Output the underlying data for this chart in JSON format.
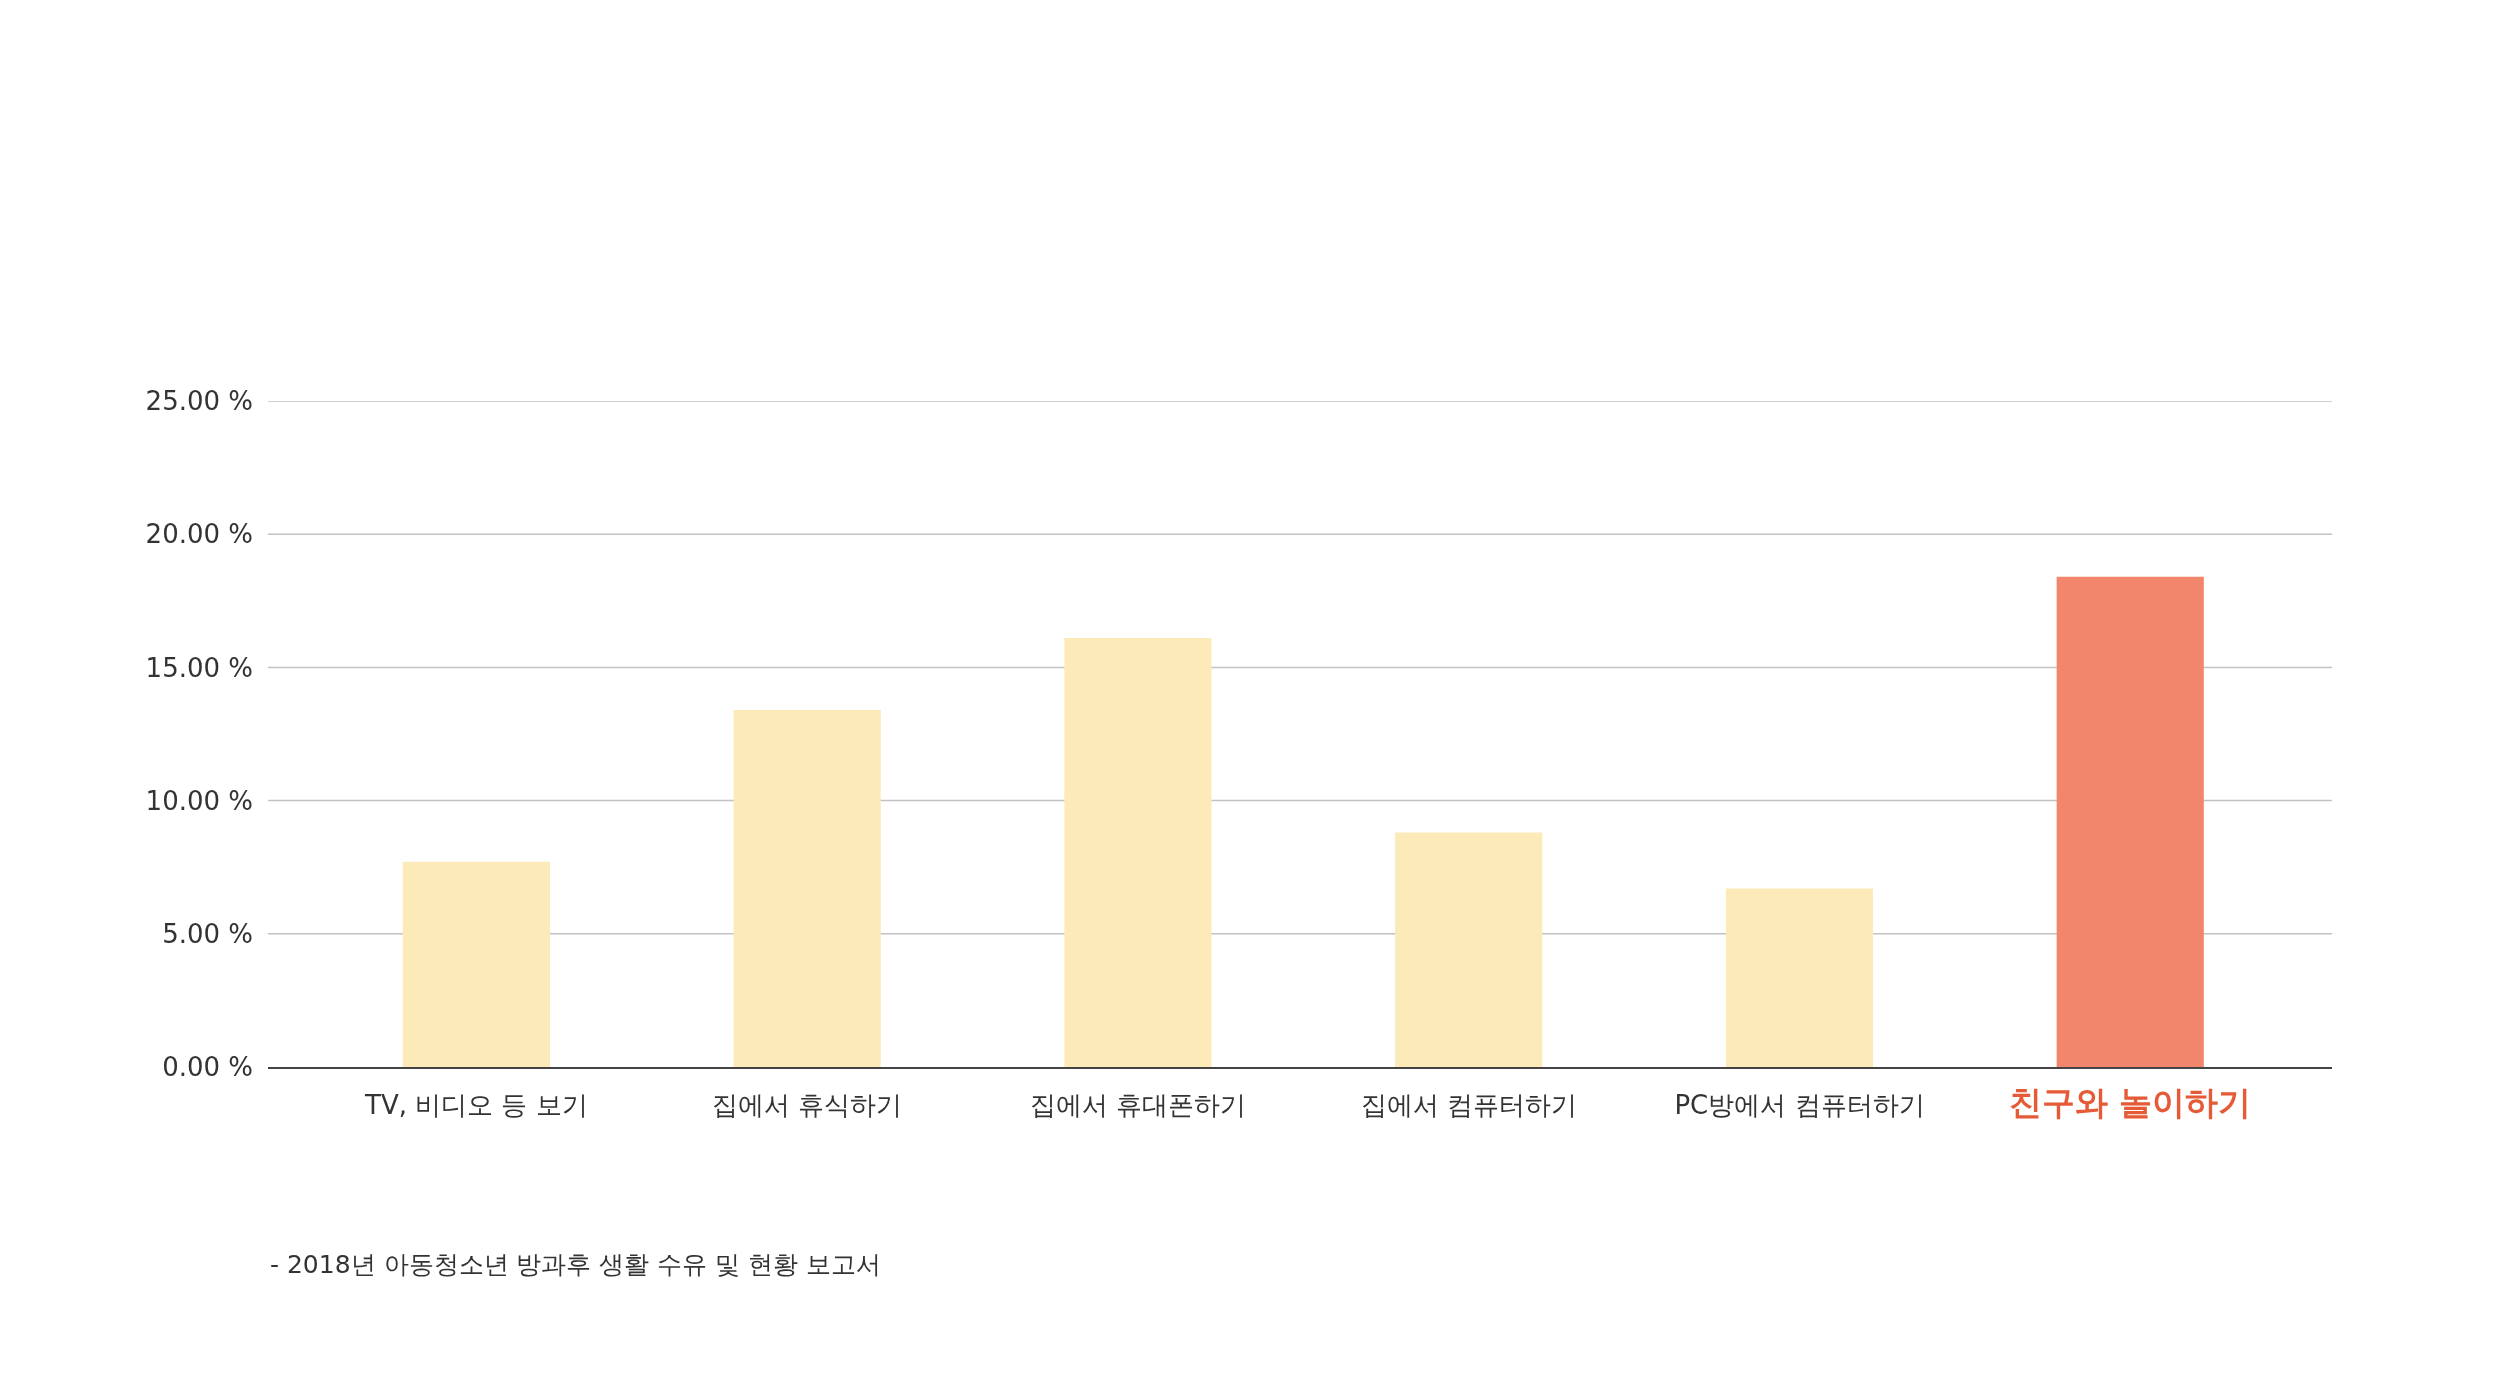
{
  "chart_data": {
    "type": "bar",
    "categories": [
      "TV, 비디오 등 보기",
      "집에서 휴식하기",
      "집에서 휴대폰하기",
      "집에서 컴퓨터하기",
      "PC방에서 컴퓨터하기",
      "친구와 놀이하기"
    ],
    "values": [
      7.7,
      13.4,
      16.1,
      8.8,
      6.7,
      18.4
    ],
    "colors": [
      "#fdeab9",
      "#fdeab9",
      "#fdeab9",
      "#fdeab9",
      "#fdeab9",
      "#f2866d"
    ],
    "ylim": [
      0,
      25
    ],
    "yticks": [
      {
        "value": 0,
        "label": "0.00 %"
      },
      {
        "value": 5,
        "label": "5.00 %"
      },
      {
        "value": 10,
        "label": "10.00 %"
      },
      {
        "value": 15,
        "label": "15.00 %"
      },
      {
        "value": 20,
        "label": "20.00 %"
      },
      {
        "value": 25,
        "label": "25.00 %"
      }
    ],
    "grid": "y",
    "annotations": [
      "- 2018년 아동청소년 방과후 생활 수유 및 현황 보고서"
    ]
  }
}
